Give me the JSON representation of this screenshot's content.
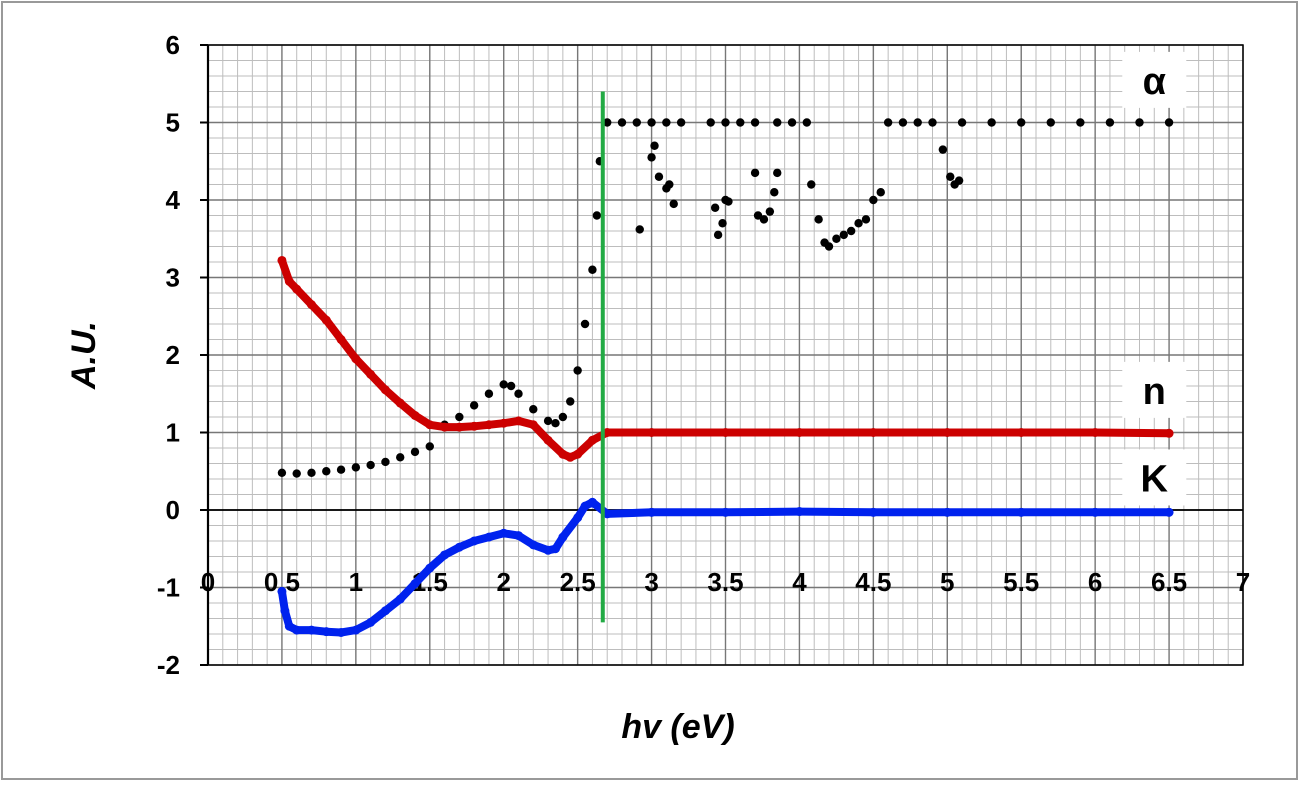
{
  "chart_data": {
    "type": "scatter",
    "title": "",
    "xlabel": "hv (eV)",
    "ylabel": "A.U.",
    "xlim": [
      0,
      7
    ],
    "ylim": [
      -2,
      6
    ],
    "x_ticks": [
      "0",
      "0.5",
      "1",
      "1.5",
      "2",
      "2.5",
      "3",
      "3.5",
      "4",
      "4.5",
      "5",
      "5.5",
      "6",
      "6.5",
      "7"
    ],
    "y_ticks": [
      "-2",
      "-1",
      "0",
      "1",
      "2",
      "3",
      "4",
      "5",
      "6"
    ],
    "grid": true,
    "minor_grid": true,
    "vertical_marker": {
      "x": 2.67,
      "y_range": [
        -1.45,
        5.4
      ],
      "color": "#22aa44"
    },
    "series": [
      {
        "name": "α",
        "color": "#000000",
        "label_position": [
          6.4,
          5.55
        ],
        "points": [
          [
            0.5,
            0.48
          ],
          [
            0.6,
            0.47
          ],
          [
            0.7,
            0.48
          ],
          [
            0.8,
            0.5
          ],
          [
            0.9,
            0.52
          ],
          [
            1.0,
            0.55
          ],
          [
            1.1,
            0.58
          ],
          [
            1.2,
            0.62
          ],
          [
            1.3,
            0.68
          ],
          [
            1.4,
            0.75
          ],
          [
            1.5,
            0.82
          ],
          [
            1.6,
            1.1
          ],
          [
            1.7,
            1.2
          ],
          [
            1.8,
            1.35
          ],
          [
            1.9,
            1.5
          ],
          [
            2.0,
            1.62
          ],
          [
            2.05,
            1.6
          ],
          [
            2.1,
            1.5
          ],
          [
            2.2,
            1.3
          ],
          [
            2.3,
            1.15
          ],
          [
            2.35,
            1.12
          ],
          [
            2.4,
            1.2
          ],
          [
            2.45,
            1.4
          ],
          [
            2.5,
            1.8
          ],
          [
            2.55,
            2.4
          ],
          [
            2.6,
            3.1
          ],
          [
            2.63,
            3.8
          ],
          [
            2.65,
            4.5
          ],
          [
            2.7,
            5.0
          ],
          [
            2.8,
            5.0
          ],
          [
            2.9,
            5.0
          ],
          [
            3.0,
            5.0
          ],
          [
            3.1,
            5.0
          ],
          [
            3.2,
            5.0
          ],
          [
            3.4,
            5.0
          ],
          [
            3.5,
            5.0
          ],
          [
            3.6,
            5.0
          ],
          [
            3.7,
            5.0
          ],
          [
            3.85,
            5.0
          ],
          [
            3.95,
            5.0
          ],
          [
            4.05,
            5.0
          ],
          [
            4.6,
            5.0
          ],
          [
            4.7,
            5.0
          ],
          [
            4.8,
            5.0
          ],
          [
            4.9,
            5.0
          ],
          [
            5.1,
            5.0
          ],
          [
            5.3,
            5.0
          ],
          [
            5.5,
            5.0
          ],
          [
            5.7,
            5.0
          ],
          [
            5.9,
            5.0
          ],
          [
            6.1,
            5.0
          ],
          [
            6.3,
            5.0
          ],
          [
            6.5,
            5.0
          ],
          [
            2.92,
            3.62
          ],
          [
            3.0,
            4.55
          ],
          [
            3.02,
            4.7
          ],
          [
            3.05,
            4.3
          ],
          [
            3.1,
            4.15
          ],
          [
            3.12,
            4.2
          ],
          [
            3.15,
            3.95
          ],
          [
            3.43,
            3.9
          ],
          [
            3.45,
            3.55
          ],
          [
            3.48,
            3.7
          ],
          [
            3.5,
            4.0
          ],
          [
            3.52,
            3.98
          ],
          [
            3.7,
            4.35
          ],
          [
            3.72,
            3.8
          ],
          [
            3.76,
            3.75
          ],
          [
            3.8,
            3.85
          ],
          [
            3.83,
            4.1
          ],
          [
            3.85,
            4.35
          ],
          [
            4.08,
            4.2
          ],
          [
            4.13,
            3.75
          ],
          [
            4.17,
            3.45
          ],
          [
            4.2,
            3.4
          ],
          [
            4.25,
            3.5
          ],
          [
            4.3,
            3.55
          ],
          [
            4.35,
            3.6
          ],
          [
            4.4,
            3.7
          ],
          [
            4.45,
            3.75
          ],
          [
            4.5,
            4.0
          ],
          [
            4.55,
            4.1
          ],
          [
            4.97,
            4.65
          ],
          [
            5.02,
            4.3
          ],
          [
            5.05,
            4.2
          ],
          [
            5.08,
            4.25
          ]
        ]
      },
      {
        "name": "n",
        "color": "#cc0000",
        "label_position": [
          6.4,
          1.55
        ],
        "points": [
          [
            0.5,
            3.22
          ],
          [
            0.55,
            2.95
          ],
          [
            0.6,
            2.85
          ],
          [
            0.7,
            2.65
          ],
          [
            0.8,
            2.45
          ],
          [
            0.9,
            2.2
          ],
          [
            1.0,
            1.95
          ],
          [
            1.1,
            1.75
          ],
          [
            1.2,
            1.55
          ],
          [
            1.3,
            1.38
          ],
          [
            1.4,
            1.22
          ],
          [
            1.5,
            1.1
          ],
          [
            1.6,
            1.07
          ],
          [
            1.7,
            1.07
          ],
          [
            1.8,
            1.08
          ],
          [
            1.9,
            1.1
          ],
          [
            2.0,
            1.12
          ],
          [
            2.1,
            1.15
          ],
          [
            2.2,
            1.1
          ],
          [
            2.3,
            0.9
          ],
          [
            2.4,
            0.72
          ],
          [
            2.45,
            0.68
          ],
          [
            2.5,
            0.72
          ],
          [
            2.6,
            0.9
          ],
          [
            2.7,
            1.0
          ],
          [
            3.0,
            1.0
          ],
          [
            3.5,
            1.0
          ],
          [
            4.0,
            1.0
          ],
          [
            4.5,
            1.0
          ],
          [
            5.0,
            1.0
          ],
          [
            5.5,
            1.0
          ],
          [
            6.0,
            1.0
          ],
          [
            6.5,
            0.99
          ]
        ]
      },
      {
        "name": "K",
        "color": "#0022ee",
        "label_position": [
          6.4,
          0.42
        ],
        "points": [
          [
            0.5,
            -1.05
          ],
          [
            0.52,
            -1.3
          ],
          [
            0.55,
            -1.5
          ],
          [
            0.6,
            -1.55
          ],
          [
            0.7,
            -1.55
          ],
          [
            0.8,
            -1.57
          ],
          [
            0.9,
            -1.58
          ],
          [
            1.0,
            -1.55
          ],
          [
            1.1,
            -1.45
          ],
          [
            1.2,
            -1.3
          ],
          [
            1.3,
            -1.15
          ],
          [
            1.4,
            -0.95
          ],
          [
            1.5,
            -0.75
          ],
          [
            1.6,
            -0.58
          ],
          [
            1.7,
            -0.48
          ],
          [
            1.8,
            -0.4
          ],
          [
            1.9,
            -0.35
          ],
          [
            2.0,
            -0.3
          ],
          [
            2.1,
            -0.33
          ],
          [
            2.2,
            -0.45
          ],
          [
            2.3,
            -0.52
          ],
          [
            2.35,
            -0.5
          ],
          [
            2.4,
            -0.35
          ],
          [
            2.5,
            -0.1
          ],
          [
            2.55,
            0.05
          ],
          [
            2.6,
            0.1
          ],
          [
            2.7,
            -0.05
          ],
          [
            3.0,
            -0.03
          ],
          [
            3.5,
            -0.03
          ],
          [
            4.0,
            -0.02
          ],
          [
            4.5,
            -0.03
          ],
          [
            5.0,
            -0.03
          ],
          [
            5.5,
            -0.03
          ],
          [
            6.0,
            -0.03
          ],
          [
            6.5,
            -0.03
          ]
        ]
      }
    ]
  }
}
